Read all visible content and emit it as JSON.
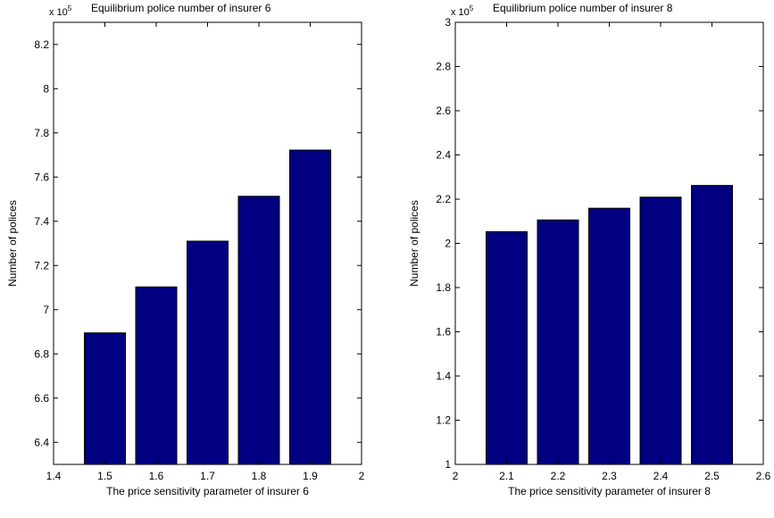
{
  "chart_data": [
    {
      "type": "bar",
      "title": "Equilibrium police number of insurer 6",
      "multiplier": "x 10",
      "multiplier_exp": "5",
      "xlabel": "The price sensitivity parameter of insurer 6",
      "ylabel": "Number of polices",
      "x": [
        1.5,
        1.6,
        1.7,
        1.8,
        1.9
      ],
      "values": [
        6.895,
        7.103,
        7.31,
        7.513,
        7.722
      ],
      "xlim": [
        1.4,
        2.0
      ],
      "ylim": [
        6.3,
        8.3
      ],
      "xticks": [
        "1.4",
        "1.5",
        "1.6",
        "1.7",
        "1.8",
        "1.9",
        "2"
      ],
      "yticks": [
        "6.4",
        "6.6",
        "6.8",
        "7",
        "7.2",
        "7.4",
        "7.6",
        "7.8",
        "8",
        "8.2"
      ],
      "bar_color": "#000080",
      "grid": false
    },
    {
      "type": "bar",
      "title": "Equilibrium police number of insurer 8",
      "multiplier": "x 10",
      "multiplier_exp": "5",
      "xlabel": "The price sensitivity parameter of insurer 8",
      "ylabel": "Number of polices",
      "x": [
        2.1,
        2.2,
        2.3,
        2.4,
        2.5
      ],
      "values": [
        2.053,
        2.106,
        2.159,
        2.209,
        2.262
      ],
      "xlim": [
        2.0,
        2.6
      ],
      "ylim": [
        1.0,
        3.0
      ],
      "xticks": [
        "2",
        "2.1",
        "2.2",
        "2.3",
        "2.4",
        "2.5",
        "2.6"
      ],
      "yticks": [
        "1",
        "1.2",
        "1.4",
        "1.6",
        "1.8",
        "2",
        "2.2",
        "2.4",
        "2.6",
        "2.8",
        "3"
      ],
      "bar_color": "#000080",
      "grid": false
    }
  ]
}
